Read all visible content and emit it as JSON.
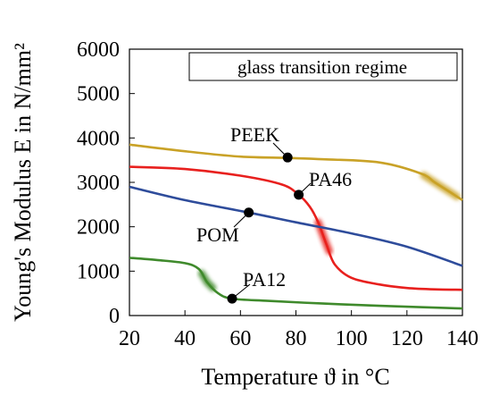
{
  "chart_data": {
    "type": "line",
    "xlabel": "Temperature ϑ in °C",
    "ylabel": "Young's Modulus E in N/mm²",
    "xlim": [
      20,
      140
    ],
    "ylim": [
      0,
      6000
    ],
    "xticks": [
      "20",
      "40",
      "60",
      "80",
      "100",
      "120",
      "140"
    ],
    "yticks": [
      "0",
      "1000",
      "2000",
      "3000",
      "4000",
      "5000",
      "6000"
    ],
    "grid": false,
    "legend": {
      "position": "top-right",
      "entries": [
        "glass transition regime"
      ]
    },
    "series": [
      {
        "name": "PEEK",
        "color": "#C9A227",
        "x": [
          20,
          40,
          60,
          77,
          90,
          110,
          125,
          130,
          135,
          140
        ],
        "y": [
          3850,
          3700,
          3580,
          3550,
          3520,
          3450,
          3200,
          3000,
          2800,
          2600
        ],
        "marker": {
          "x": 77,
          "y": 3560
        },
        "transition": {
          "x0": 126,
          "x1": 138
        }
      },
      {
        "name": "PA46",
        "color": "#E8201E",
        "x": [
          20,
          40,
          60,
          75,
          81,
          85,
          88,
          91,
          94,
          100,
          110,
          120,
          130,
          140
        ],
        "y": [
          3350,
          3300,
          3150,
          2950,
          2720,
          2450,
          2100,
          1600,
          1150,
          850,
          700,
          620,
          590,
          580
        ],
        "marker": {
          "x": 81,
          "y": 2720
        },
        "transition": {
          "x0": 88,
          "x1": 92
        }
      },
      {
        "name": "POM",
        "color": "#2E4C9B",
        "x": [
          20,
          40,
          63,
          80,
          100,
          120,
          140
        ],
        "y": [
          2900,
          2600,
          2320,
          2100,
          1850,
          1550,
          1120
        ],
        "marker": {
          "x": 63,
          "y": 2320
        }
      },
      {
        "name": "PA12",
        "color": "#3F8A2C",
        "x": [
          20,
          30,
          40,
          45,
          48,
          52,
          57,
          70,
          90,
          110,
          140
        ],
        "y": [
          1300,
          1250,
          1180,
          1050,
          750,
          500,
          380,
          330,
          270,
          220,
          160
        ],
        "marker": {
          "x": 57,
          "y": 380
        },
        "transition": {
          "x0": 46,
          "x1": 50
        }
      }
    ],
    "labels": [
      {
        "text": "PEEK",
        "series": "PEEK"
      },
      {
        "text": "PA46",
        "series": "PA46"
      },
      {
        "text": "POM",
        "series": "POM"
      },
      {
        "text": "PA12",
        "series": "PA12"
      }
    ]
  }
}
